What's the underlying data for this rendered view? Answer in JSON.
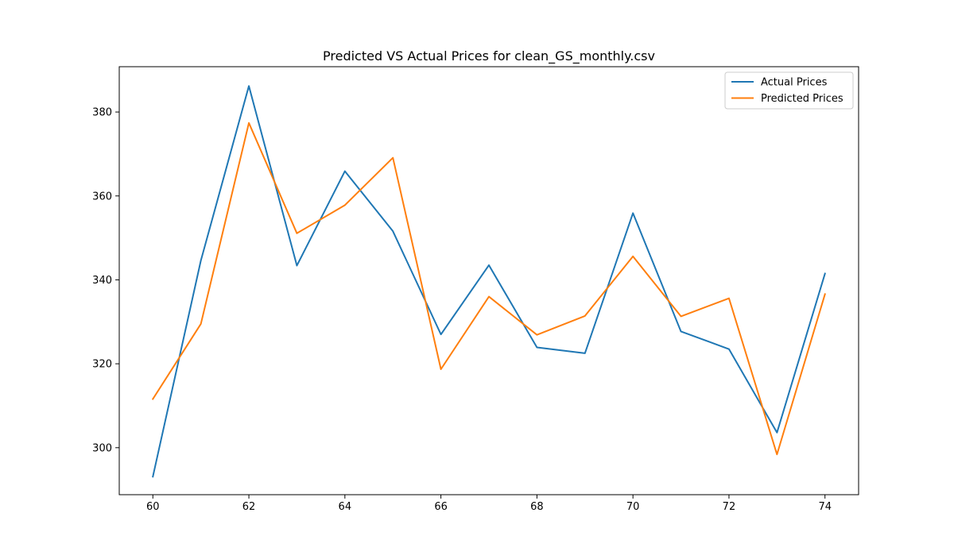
{
  "chart_data": {
    "type": "line",
    "title": "Predicted VS Actual Prices for clean_GS_monthly.csv",
    "xlabel": "",
    "ylabel": "",
    "xlim": [
      59.3,
      74.7
    ],
    "ylim": [
      288.8,
      390.8
    ],
    "x_ticks": [
      60,
      62,
      64,
      66,
      68,
      70,
      72,
      74
    ],
    "y_ticks": [
      300,
      320,
      340,
      360,
      380
    ],
    "grid": false,
    "legend_position": "upper right",
    "x": [
      60,
      61,
      62,
      63,
      64,
      65,
      66,
      67,
      68,
      69,
      70,
      71,
      72,
      73,
      74
    ],
    "series": [
      {
        "name": "Actual Prices",
        "color": "#1f77b4",
        "values": [
          293.1,
          344.6,
          386.2,
          343.4,
          365.9,
          351.6,
          327.0,
          343.5,
          323.9,
          322.5,
          355.9,
          327.7,
          323.5,
          303.6,
          341.5
        ]
      },
      {
        "name": "Predicted Prices",
        "color": "#ff7f0e",
        "values": [
          311.6,
          329.5,
          377.4,
          351.1,
          357.8,
          369.1,
          318.7,
          336.0,
          326.9,
          331.4,
          345.6,
          331.3,
          335.6,
          298.4,
          336.6
        ]
      }
    ]
  }
}
